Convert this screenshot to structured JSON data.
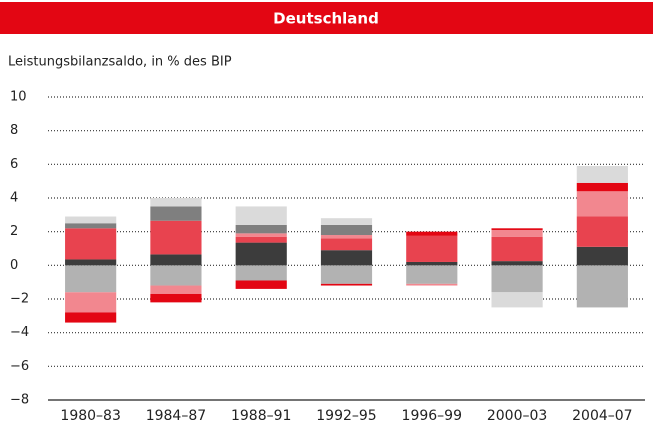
{
  "chart_data": {
    "type": "bar",
    "stacked": true,
    "title": "Deutschland",
    "subtitle": "Leistungsbilanzsaldo, in % des BIP",
    "categories": [
      "1980–83",
      "1984–87",
      "1988–91",
      "1992–95",
      "1996–99",
      "2000–03",
      "2004–07"
    ],
    "series": [
      {
        "color": "#b2b2b2",
        "values": [
          -1.6,
          -1.2,
          -0.9,
          -1.1,
          -1.1,
          -1.6,
          -2.5
        ]
      },
      {
        "color": "#3c3c3c",
        "values": [
          0.35,
          0.65,
          1.35,
          0.9,
          0.2,
          0.25,
          1.1
        ]
      },
      {
        "color": "#e8434f",
        "values": [
          1.85,
          2.0,
          0.35,
          0.7,
          1.55,
          1.45,
          1.8
        ]
      },
      {
        "color": "#f2878f",
        "values": [
          -1.2,
          -0.5,
          0.2,
          0.2,
          -0.1,
          0.4,
          1.5
        ]
      },
      {
        "color": "#e30613",
        "values": [
          -0.6,
          -0.5,
          -0.5,
          -0.1,
          0.25,
          0.1,
          0.5
        ]
      },
      {
        "color": "#7f7f7f",
        "values": [
          0.3,
          0.85,
          0.5,
          0.6,
          null,
          null,
          null
        ]
      },
      {
        "color": "#dadada",
        "values": [
          0.4,
          0.5,
          1.1,
          0.4,
          null,
          -0.9,
          1.0
        ]
      }
    ],
    "ylim": [
      -8,
      10
    ],
    "yticks": [
      {
        "value": -8,
        "label": "−8"
      },
      {
        "value": -6,
        "label": "−6"
      },
      {
        "value": -4,
        "label": "−4"
      },
      {
        "value": -2,
        "label": "−2"
      },
      0,
      2,
      4,
      6,
      8,
      10
    ],
    "grid": true
  }
}
